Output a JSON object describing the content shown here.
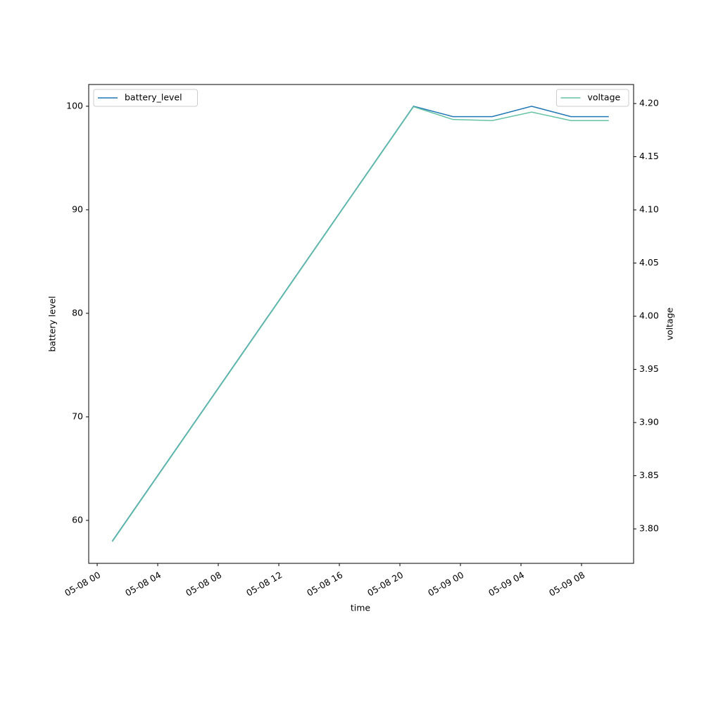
{
  "chart_data": {
    "type": "line",
    "x_label": "time",
    "y_label": "battery level",
    "y2_label": "voltage",
    "x": [
      1,
      20.9,
      23.5,
      26.1,
      28.7,
      31.3,
      33.8
    ],
    "xlim": [
      -0.56,
      35.44
    ],
    "xticks": [
      {
        "value": 0,
        "label": "05-08 00"
      },
      {
        "value": 4,
        "label": "05-08 04"
      },
      {
        "value": 8,
        "label": "05-08 08"
      },
      {
        "value": 12,
        "label": "05-08 12"
      },
      {
        "value": 16,
        "label": "05-08 16"
      },
      {
        "value": 20,
        "label": "05-08 20"
      },
      {
        "value": 24,
        "label": "05-09 00"
      },
      {
        "value": 28,
        "label": "05-09 04"
      },
      {
        "value": 32,
        "label": "05-09 08"
      }
    ],
    "ylim": [
      55.85,
      102.1
    ],
    "yticks": [
      60,
      70,
      80,
      90,
      100
    ],
    "y2lim": [
      3.7676,
      4.2179
    ],
    "y2ticks": [
      {
        "value": 3.8,
        "label": "3.80"
      },
      {
        "value": 3.85,
        "label": "3.85"
      },
      {
        "value": 3.9,
        "label": "3.90"
      },
      {
        "value": 3.95,
        "label": "3.95"
      },
      {
        "value": 4.0,
        "label": "4.00"
      },
      {
        "value": 4.05,
        "label": "4.05"
      },
      {
        "value": 4.1,
        "label": "4.10"
      },
      {
        "value": 4.15,
        "label": "4.15"
      },
      {
        "value": 4.2,
        "label": "4.20"
      }
    ],
    "series": [
      {
        "name": "battery_level",
        "color": "#1f77b4",
        "values": [
          58,
          100,
          99,
          99,
          100,
          99,
          99
        ],
        "legend": "upper left"
      },
      {
        "name": "voltage",
        "color": "#66c2a5",
        "axis": "y2",
        "values": [
          3.788,
          4.197,
          4.185,
          4.184,
          4.192,
          4.184,
          4.184
        ],
        "legend": "upper right"
      }
    ]
  }
}
